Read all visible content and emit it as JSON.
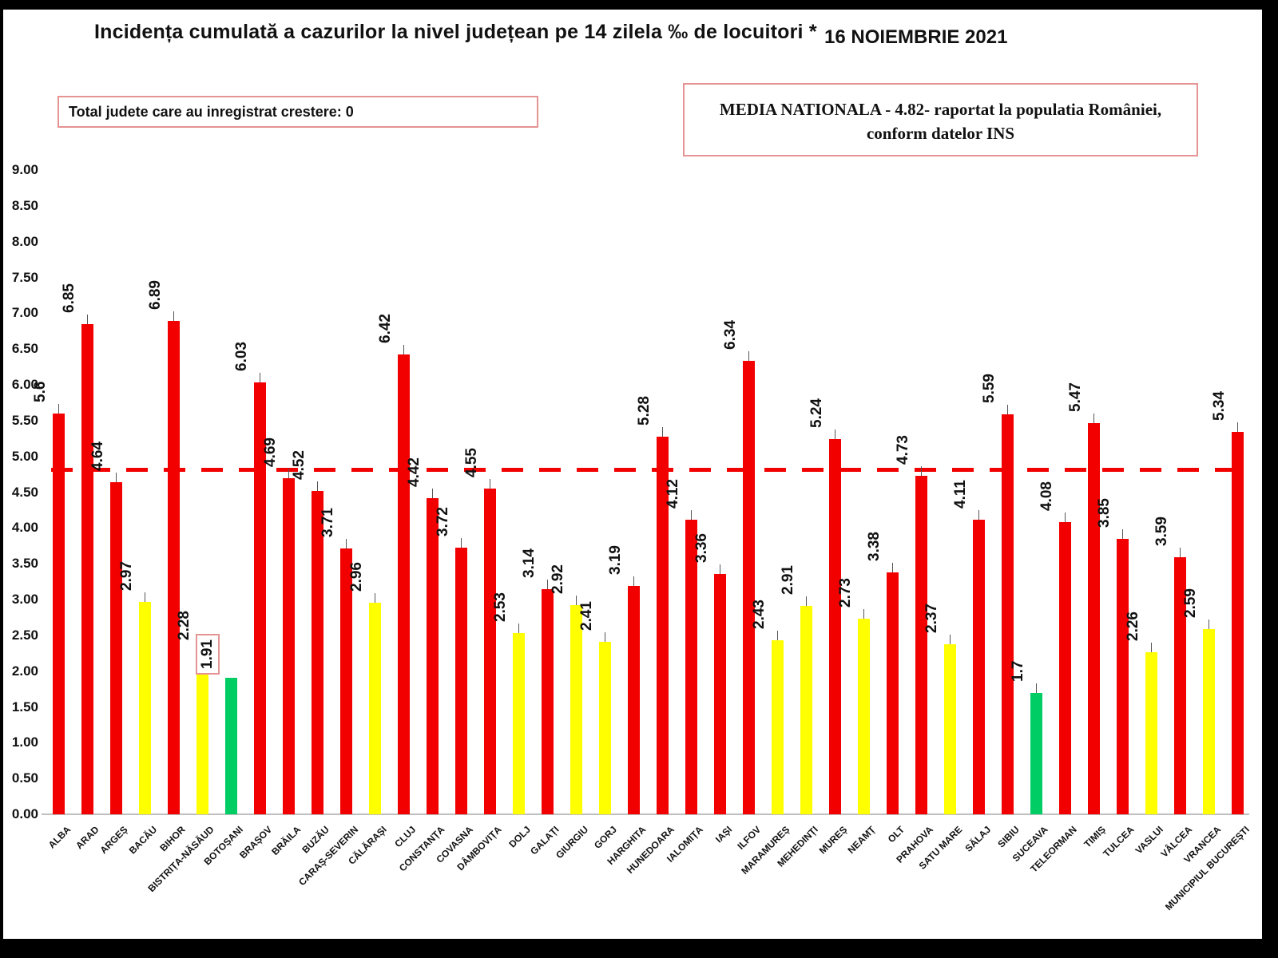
{
  "header": {
    "title": "Incidența cumulată a cazurilor la nivel județean pe 14 zilela ‰ de locuitori *",
    "date": "16 NOIEMBRIE 2021",
    "growth_box": "Total judete care au inregistrat crestere: 0",
    "national_box_line1": "MEDIA NATIONALA - 4.82- raportat la populatia României,",
    "national_box_line2": "conform datelor INS"
  },
  "chart_data": {
    "type": "bar",
    "title": "Incidența cumulată a cazurilor la nivel județean pe 14 zilela ‰ de locuitori *",
    "subtitle": "16 NOIEMBRIE 2021",
    "xlabel": "",
    "ylabel": "",
    "ylim": [
      0,
      9
    ],
    "ytick_step": 0.5,
    "yticks": [
      "0.00",
      "0.50",
      "1.00",
      "1.50",
      "2.00",
      "2.50",
      "3.00",
      "3.50",
      "4.00",
      "4.50",
      "5.00",
      "5.50",
      "6.00",
      "6.50",
      "7.00",
      "7.50",
      "8.00",
      "8.50",
      "9.00"
    ],
    "grid": false,
    "legend": false,
    "national_average": 4.82,
    "national_average_note": "MEDIA NATIONALA - 4.82- raportat la populatia României, conform datelor INS",
    "counties_with_growth": 0,
    "highlighted_category": "BOTOȘANI",
    "categories": [
      "ALBA",
      "ARAD",
      "ARGEȘ",
      "BACĂU",
      "BIHOR",
      "BISTRIȚA-NĂSĂUD",
      "BOTOȘANI",
      "BRAȘOV",
      "BRĂILA",
      "BUZĂU",
      "CARAȘ-SEVERIN",
      "CĂLĂRAȘI",
      "CLUJ",
      "CONSTANȚA",
      "COVASNA",
      "DÂMBOVIȚA",
      "DOLJ",
      "GALAȚI",
      "GIURGIU",
      "GORJ",
      "HARGHITA",
      "HUNEDOARA",
      "IALOMIȚA",
      "IAȘI",
      "ILFOV",
      "MARAMUREȘ",
      "MEHEDINȚI",
      "MUREȘ",
      "NEAMȚ",
      "OLT",
      "PRAHOVA",
      "SATU MARE",
      "SĂLAJ",
      "SIBIU",
      "SUCEAVA",
      "TELEORMAN",
      "TIMIȘ",
      "TULCEA",
      "VASLUI",
      "VÂLCEA",
      "VRANCEA",
      "MUNICIPIUL BUCUREȘTI"
    ],
    "values": [
      5.6,
      6.85,
      4.64,
      2.97,
      6.89,
      2.28,
      1.91,
      6.03,
      4.69,
      4.52,
      3.71,
      2.96,
      6.42,
      4.42,
      3.72,
      4.55,
      2.53,
      3.14,
      2.92,
      2.41,
      3.19,
      5.28,
      4.12,
      3.36,
      6.34,
      2.43,
      2.91,
      5.24,
      2.73,
      3.38,
      4.73,
      2.37,
      4.11,
      5.59,
      1.7,
      4.08,
      5.47,
      3.85,
      2.26,
      3.59,
      2.59,
      5.34
    ],
    "value_labels": [
      "5.6",
      "6.85",
      "4.64",
      "2.97",
      "6.89",
      "2.28",
      "1.91",
      "6.03",
      "4.69",
      "4.52",
      "3.71",
      "2.96",
      "6.42",
      "4.42",
      "3.72",
      "4.55",
      "2.53",
      "3.14",
      "2.92",
      "2.41",
      "3.19",
      "5.28",
      "4.12",
      "3.36",
      "6.34",
      "2.43",
      "2.91",
      "5.24",
      "2.73",
      "3.38",
      "4.73",
      "2.37",
      "4.11",
      "5.59",
      "1.7",
      "4.08",
      "5.47",
      "3.85",
      "2.26",
      "3.59",
      "2.59",
      "5.34"
    ],
    "bar_colors": [
      "red",
      "red",
      "red",
      "yellow",
      "red",
      "yellow",
      "green",
      "red",
      "red",
      "red",
      "red",
      "yellow",
      "red",
      "red",
      "red",
      "red",
      "yellow",
      "red",
      "yellow",
      "yellow",
      "red",
      "red",
      "red",
      "red",
      "red",
      "yellow",
      "yellow",
      "red",
      "yellow",
      "red",
      "red",
      "yellow",
      "red",
      "red",
      "green",
      "red",
      "red",
      "red",
      "yellow",
      "red",
      "yellow",
      "red"
    ]
  },
  "colors": {
    "red": "#f20000",
    "yellow": "#ffff00",
    "green": "#00cd64",
    "average_line": "#f20000",
    "box_border": "#e59393",
    "leader": "#555555",
    "baseline": "#bfbfbf",
    "frame": "#000000"
  }
}
